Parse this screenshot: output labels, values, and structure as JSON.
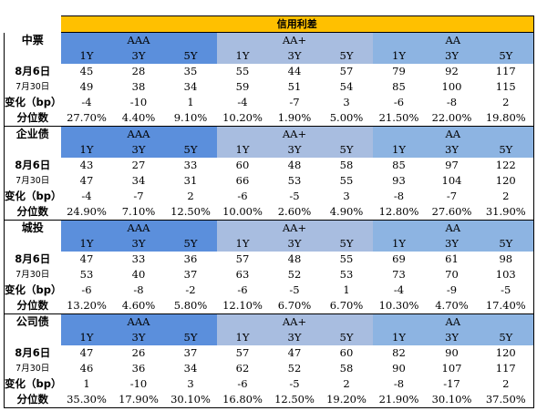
{
  "title": "信用利差",
  "grades": [
    "AAA",
    "AA+",
    "AA"
  ],
  "tenors": [
    "1Y",
    "3Y",
    "5Y"
  ],
  "row_labels": {
    "cur": "8月6日",
    "prev": "7月30日",
    "chg": "变化（bp）",
    "pct": "分位数"
  },
  "sections": [
    {
      "name": "中票",
      "cur": [
        "45",
        "28",
        "35",
        "55",
        "44",
        "57",
        "79",
        "92",
        "117"
      ],
      "prev": [
        "49",
        "38",
        "34",
        "59",
        "51",
        "54",
        "85",
        "100",
        "115"
      ],
      "chg": [
        "-4",
        "-10",
        "1",
        "-4",
        "-7",
        "3",
        "-6",
        "-8",
        "2"
      ],
      "pct": [
        "27.70%",
        "4.40%",
        "9.10%",
        "10.20%",
        "1.90%",
        "5.00%",
        "21.50%",
        "22.00%",
        "19.80%"
      ]
    },
    {
      "name": "企业债",
      "cur": [
        "43",
        "27",
        "33",
        "60",
        "48",
        "58",
        "85",
        "97",
        "122"
      ],
      "prev": [
        "47",
        "34",
        "31",
        "66",
        "53",
        "55",
        "93",
        "104",
        "120"
      ],
      "chg": [
        "-4",
        "-7",
        "2",
        "-6",
        "-5",
        "3",
        "-8",
        "-7",
        "2"
      ],
      "pct": [
        "24.90%",
        "7.10%",
        "12.50%",
        "10.00%",
        "2.60%",
        "4.90%",
        "12.80%",
        "27.60%",
        "31.90%"
      ]
    },
    {
      "name": "城投",
      "cur": [
        "47",
        "33",
        "36",
        "57",
        "48",
        "55",
        "69",
        "61",
        "98"
      ],
      "prev": [
        "53",
        "40",
        "37",
        "63",
        "52",
        "53",
        "73",
        "70",
        "103"
      ],
      "chg": [
        "-6",
        "-8",
        "-2",
        "-6",
        "-5",
        "1",
        "-4",
        "-9",
        "-5"
      ],
      "pct": [
        "13.20%",
        "4.60%",
        "5.80%",
        "12.10%",
        "6.70%",
        "6.70%",
        "10.30%",
        "4.70%",
        "17.40%"
      ]
    },
    {
      "name": "公司债",
      "cur": [
        "47",
        "26",
        "37",
        "57",
        "47",
        "60",
        "82",
        "90",
        "120"
      ],
      "prev": [
        "46",
        "36",
        "34",
        "62",
        "52",
        "58",
        "90",
        "107",
        "117"
      ],
      "chg": [
        "1",
        "-10",
        "3",
        "-6",
        "-5",
        "2",
        "-8",
        "-17",
        "2"
      ],
      "pct": [
        "35.30%",
        "17.90%",
        "30.10%",
        "16.80%",
        "12.50%",
        "19.20%",
        "21.90%",
        "30.10%",
        "37.50%"
      ]
    }
  ],
  "colors": {
    "title_bg": "#ffc000",
    "aaa_bg": "#5b8fdc",
    "aaplus_bg": "#a8bde0",
    "aa_bg": "#8db4e2",
    "header_text": "#ffffff"
  }
}
